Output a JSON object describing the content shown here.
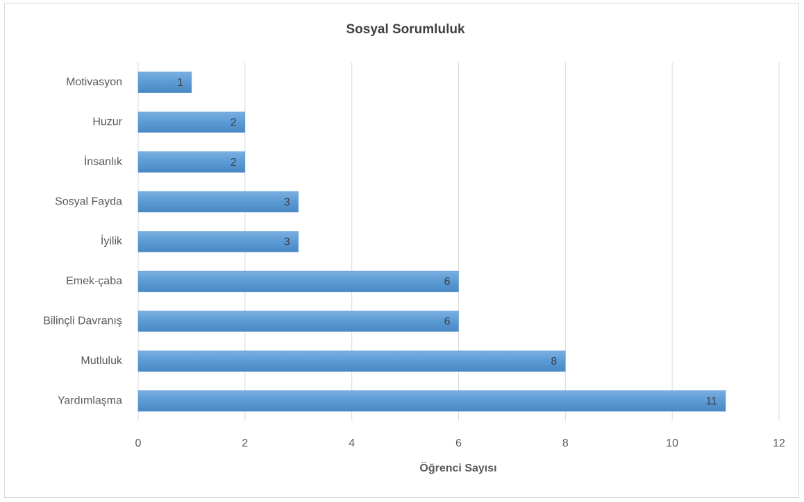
{
  "chart_data": {
    "type": "bar",
    "orientation": "horizontal",
    "title": "Sosyal Sorumluluk",
    "x_label": "Öğrenci Sayısı",
    "categories": [
      "Motivasyon",
      "Huzur",
      "İnsanlık",
      "Sosyal Fayda",
      "İyilik",
      "Emek-çaba",
      "Bilinçli Davranış",
      "Mutluluk",
      "Yardımlaşma"
    ],
    "values": [
      1,
      2,
      2,
      3,
      3,
      6,
      6,
      8,
      11
    ],
    "color": "#5b9bd5",
    "xlim": [
      0,
      12
    ],
    "xticks": [
      0,
      2,
      4,
      6,
      8,
      10,
      12
    ],
    "grid": true
  }
}
